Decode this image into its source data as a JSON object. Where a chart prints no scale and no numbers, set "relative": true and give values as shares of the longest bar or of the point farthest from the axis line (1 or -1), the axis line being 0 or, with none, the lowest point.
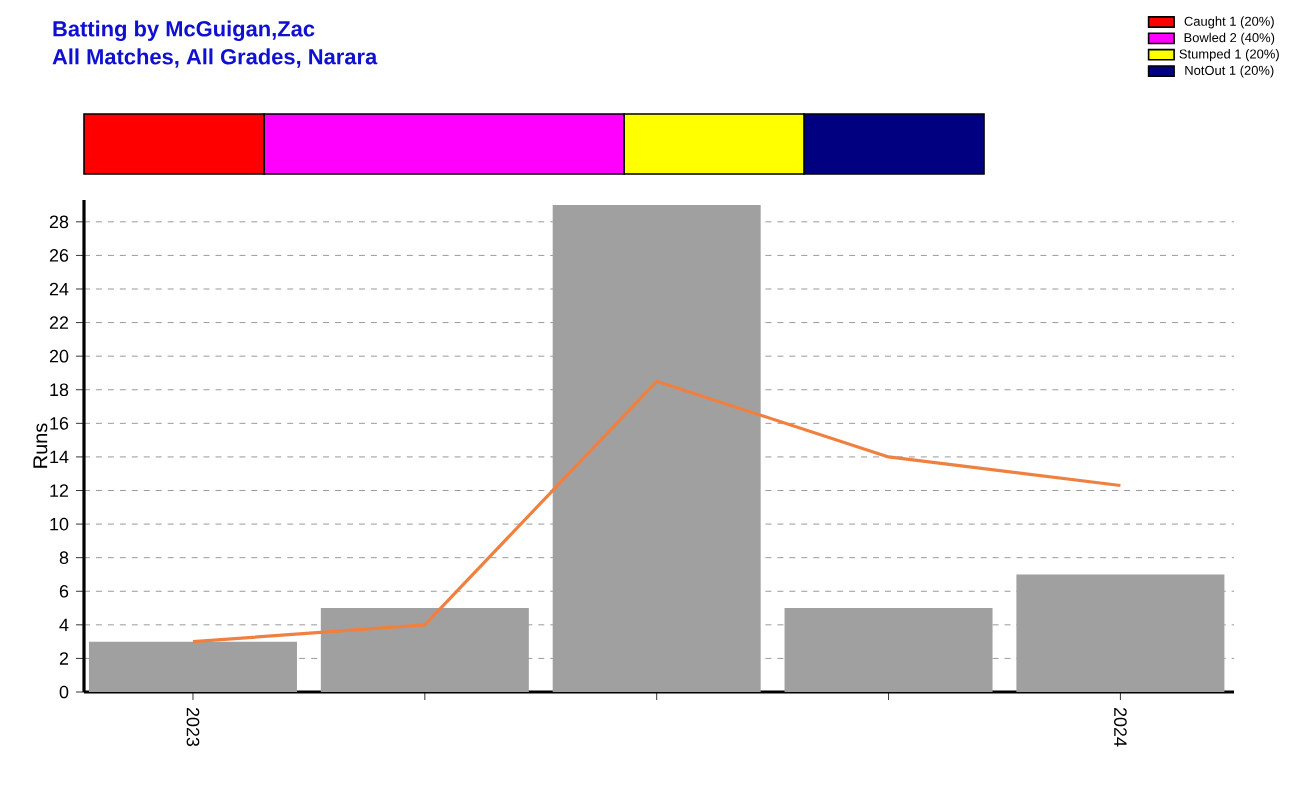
{
  "chart_data": [
    {
      "type": "bar",
      "title": "Batting by McGuigan,Zac",
      "subtitle": "All Matches, All Grades, Narara",
      "orientation": "horizontal",
      "stacked": true,
      "relative": true,
      "legend": "top right",
      "categories": [
        null
      ],
      "series": [
        {
          "name": "Caught 1 (20%)",
          "color": "#ff0000",
          "values": [
            0.2
          ]
        },
        {
          "name": "Bowled 2 (40%)",
          "color": "#ff00ff",
          "values": [
            0.4
          ]
        },
        {
          "name": "Stumped 1 (20%)",
          "color": "#ffff00",
          "values": [
            0.2
          ]
        },
        {
          "name": "NotOut 1 (20%)",
          "color": "#000080",
          "values": [
            0.2
          ]
        }
      ]
    },
    {
      "type": "bar",
      "ylabel": "Runs",
      "categories": [
        "2023",
        null,
        null,
        null,
        "2024"
      ],
      "ylim": [
        0,
        29.3
      ],
      "yticks": [
        0,
        2,
        4,
        6,
        8,
        10,
        12,
        14,
        16,
        18,
        20,
        22,
        24,
        26,
        28
      ],
      "grid": "y",
      "series": [
        {
          "color": "#a0a0a0",
          "values": [
            3,
            5,
            29,
            5,
            7
          ]
        },
        {
          "type": "line",
          "color": "#f08040",
          "values": [
            3,
            4,
            18.5,
            14,
            12.3
          ]
        }
      ]
    }
  ]
}
